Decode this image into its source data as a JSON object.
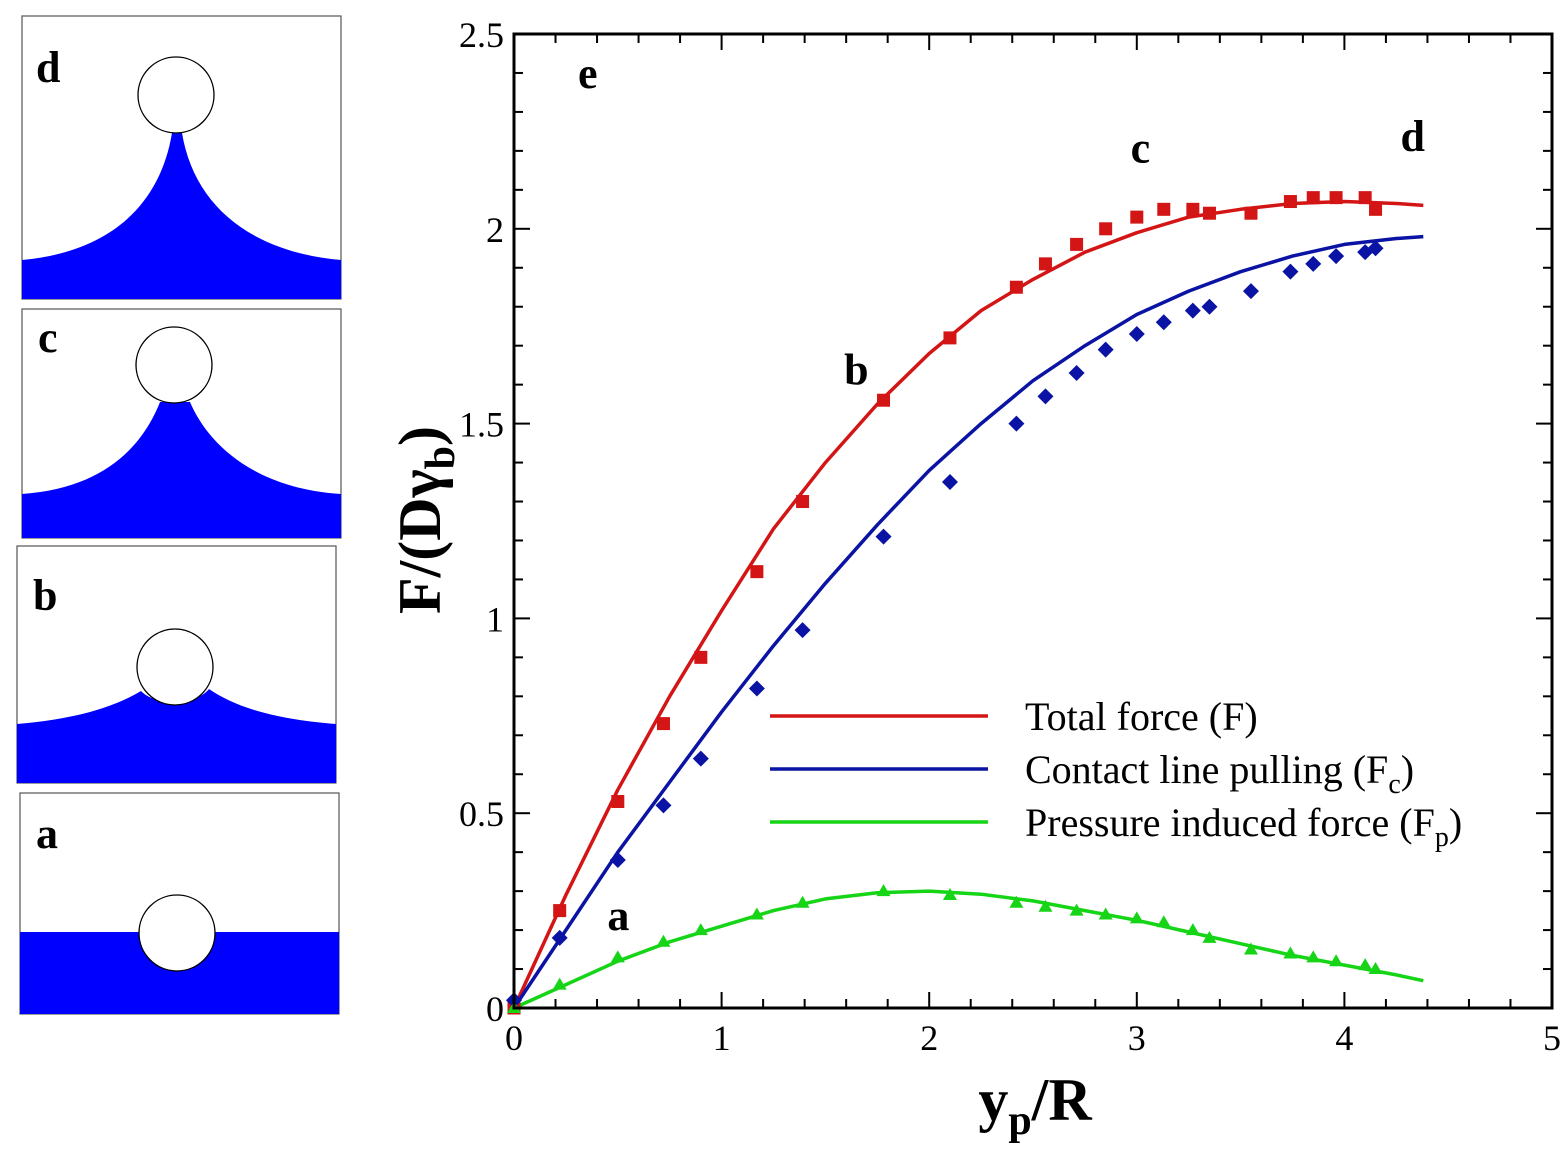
{
  "panels": [
    {
      "label": "d"
    },
    {
      "label": "c"
    },
    {
      "label": "b"
    },
    {
      "label": "a"
    }
  ],
  "chart_data": {
    "type": "line",
    "panel_label": "e",
    "xlabel": {
      "main": "y",
      "sub": "p",
      "rest": "/R"
    },
    "ylabel": {
      "main": "F/(D",
      "greek": "γ",
      "sub": "b",
      "close": ")"
    },
    "xlim": [
      0,
      5
    ],
    "ylim": [
      0,
      2.5
    ],
    "xticks": [
      0,
      1,
      2,
      3,
      4,
      5
    ],
    "xtick_labels": [
      "0",
      "1",
      "2",
      "3",
      "4",
      "5"
    ],
    "yticks": [
      0,
      0.5,
      1,
      1.5,
      2,
      2.5
    ],
    "ytick_labels": [
      "0",
      "0.5",
      "1",
      "1.5",
      "2",
      "2.5"
    ],
    "colors": {
      "total": "#d41515",
      "contact": "#0a13a3",
      "pressure": "#16d416",
      "fluid": "#0000ff"
    },
    "series": [
      {
        "name": "Total force (F)",
        "legend": {
          "text": "Total force (F)",
          "sub": ""
        },
        "color_key": "total",
        "marker": "square",
        "line_x": [
          0,
          0.25,
          0.5,
          0.75,
          1.0,
          1.25,
          1.5,
          1.75,
          2.0,
          2.25,
          2.5,
          2.75,
          3.0,
          3.25,
          3.5,
          3.75,
          4.0,
          4.25,
          4.38
        ],
        "line_y": [
          0,
          0.29,
          0.56,
          0.8,
          1.02,
          1.23,
          1.4,
          1.55,
          1.68,
          1.79,
          1.87,
          1.94,
          1.99,
          2.03,
          2.05,
          2.065,
          2.07,
          2.065,
          2.06
        ],
        "points_x": [
          0.0,
          0.22,
          0.5,
          0.72,
          0.9,
          1.17,
          1.39,
          1.78,
          2.1,
          2.42,
          2.56,
          2.71,
          2.85,
          3.0,
          3.13,
          3.27,
          3.35,
          3.55,
          3.74,
          3.85,
          3.96,
          4.1,
          4.15
        ],
        "points_y": [
          0.0,
          0.25,
          0.53,
          0.73,
          0.9,
          1.12,
          1.3,
          1.56,
          1.72,
          1.85,
          1.91,
          1.96,
          2.0,
          2.03,
          2.05,
          2.05,
          2.04,
          2.04,
          2.07,
          2.08,
          2.08,
          2.08,
          2.05
        ]
      },
      {
        "name": "Contact line pulling (Fc)",
        "legend": {
          "text": "Contact line pulling (F",
          "sub": "c",
          "close": ")"
        },
        "color_key": "contact",
        "marker": "diamond",
        "line_x": [
          0,
          0.25,
          0.5,
          0.75,
          1.0,
          1.25,
          1.5,
          1.75,
          2.0,
          2.25,
          2.5,
          2.75,
          3.0,
          3.25,
          3.5,
          3.75,
          4.0,
          4.25,
          4.38
        ],
        "line_y": [
          0,
          0.2,
          0.4,
          0.58,
          0.76,
          0.93,
          1.09,
          1.24,
          1.38,
          1.5,
          1.61,
          1.7,
          1.78,
          1.84,
          1.89,
          1.93,
          1.96,
          1.975,
          1.98
        ],
        "points_x": [
          0.0,
          0.22,
          0.5,
          0.72,
          0.9,
          1.17,
          1.39,
          1.78,
          2.1,
          2.42,
          2.56,
          2.71,
          2.85,
          3.0,
          3.13,
          3.27,
          3.35,
          3.55,
          3.74,
          3.85,
          3.96,
          4.1,
          4.15
        ],
        "points_y": [
          0.02,
          0.18,
          0.38,
          0.52,
          0.64,
          0.82,
          0.97,
          1.21,
          1.35,
          1.5,
          1.57,
          1.63,
          1.69,
          1.73,
          1.76,
          1.79,
          1.8,
          1.84,
          1.89,
          1.91,
          1.93,
          1.94,
          1.95
        ]
      },
      {
        "name": "Pressure induced force (Fp)",
        "legend": {
          "text": "Pressure induced force (F",
          "sub": "p",
          "close": ")"
        },
        "color_key": "pressure",
        "marker": "triangle",
        "line_x": [
          0,
          0.25,
          0.5,
          0.75,
          1.0,
          1.25,
          1.5,
          1.75,
          2.0,
          2.25,
          2.5,
          2.75,
          3.0,
          3.25,
          3.5,
          3.75,
          4.0,
          4.25,
          4.38
        ],
        "line_y": [
          0,
          0.06,
          0.12,
          0.17,
          0.21,
          0.25,
          0.28,
          0.296,
          0.3,
          0.292,
          0.275,
          0.25,
          0.225,
          0.195,
          0.165,
          0.135,
          0.11,
          0.085,
          0.07
        ],
        "points_x": [
          0.0,
          0.22,
          0.5,
          0.72,
          0.9,
          1.17,
          1.39,
          1.78,
          2.1,
          2.42,
          2.56,
          2.71,
          2.85,
          3.0,
          3.13,
          3.27,
          3.35,
          3.55,
          3.74,
          3.85,
          3.96,
          4.1,
          4.15
        ],
        "points_y": [
          0.0,
          0.06,
          0.13,
          0.17,
          0.2,
          0.24,
          0.27,
          0.3,
          0.29,
          0.27,
          0.26,
          0.25,
          0.24,
          0.23,
          0.22,
          0.2,
          0.18,
          0.15,
          0.14,
          0.13,
          0.12,
          0.11,
          0.1
        ]
      }
    ],
    "annotations": [
      {
        "text": "a",
        "x": 0.45,
        "y": 0.2
      },
      {
        "text": "b",
        "x": 1.59,
        "y": 1.6
      },
      {
        "text": "c",
        "x": 2.97,
        "y": 2.17
      },
      {
        "text": "d",
        "x": 4.27,
        "y": 2.2
      }
    ]
  }
}
